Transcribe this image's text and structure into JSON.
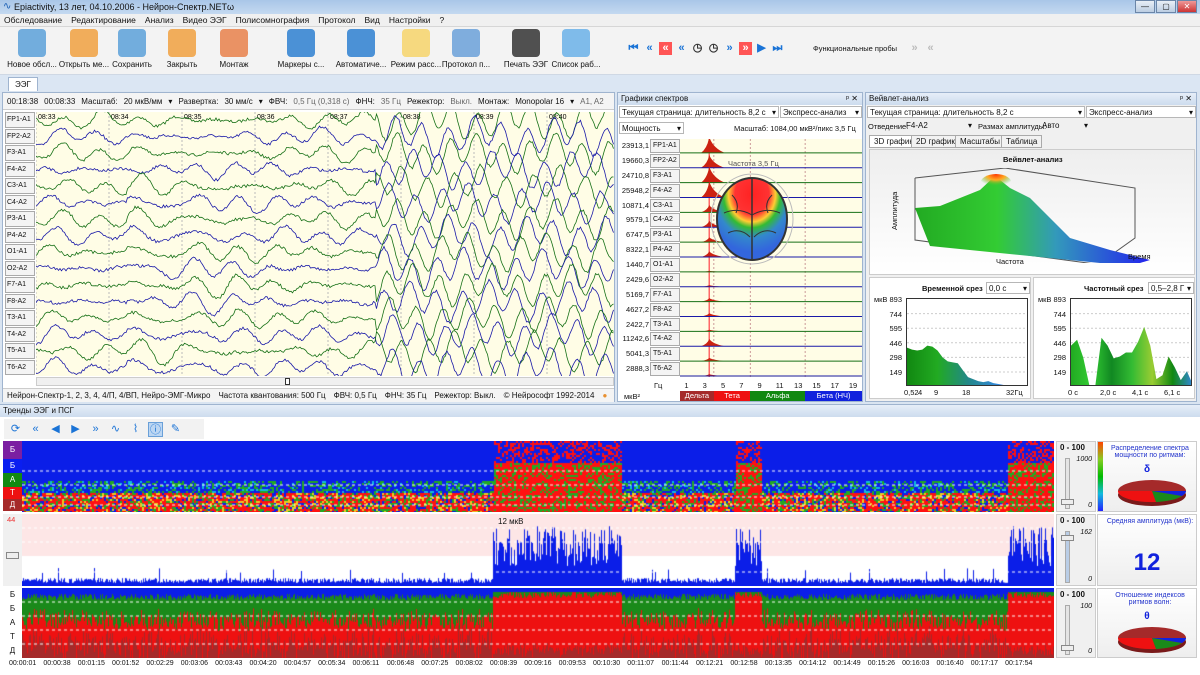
{
  "window": {
    "title": "Epiactivity, 13 лет, 04.10.2006 - Нейрон-Спектр.NETω",
    "minimize": "—",
    "maximize": "▢",
    "close": "✕"
  },
  "menu": [
    "Обследование",
    "Редактирование",
    "Анализ",
    "Видео ЭЭГ",
    "Полисомнография",
    "Протокол",
    "Вид",
    "Настройки",
    "?"
  ],
  "toolbar": {
    "buttons": [
      {
        "label": "Новое обсл...",
        "icon": "new-exam-icon",
        "color": "#5aa0d8"
      },
      {
        "label": "Открыть ме...",
        "icon": "open-icon",
        "color": "#f0a040"
      },
      {
        "label": "Сохранить",
        "icon": "save-icon",
        "color": "#5aa0d8"
      },
      {
        "label": "Закрыть",
        "icon": "close-exam-icon",
        "color": "#f0a040"
      },
      {
        "label": "Монтаж",
        "icon": "montage-head-icon",
        "color": "#e8804a"
      },
      {
        "label": "Маркеры с...",
        "icon": "markers-icon",
        "color": "#2d7fd0"
      },
      {
        "label": "Автоматиче...",
        "icon": "auto-analysis-icon",
        "color": "#2d7fd0"
      },
      {
        "label": "Режим расс...",
        "icon": "view-mode-icon",
        "color": "#f6d36a"
      },
      {
        "label": "Протокол п...",
        "icon": "protocol-icon",
        "color": "#6aa0d8"
      },
      {
        "label": "Печать ЭЭГ",
        "icon": "printer-icon",
        "color": "#333333"
      },
      {
        "label": "Список раб...",
        "icon": "worklist-icon",
        "color": "#6ab0e8"
      }
    ],
    "functional_tests": "Функциональные пробы"
  },
  "tab_eeg": "ЭЭГ",
  "eeg": {
    "time_total": "00:18:38",
    "time_pos": "00:08:33",
    "scale_label": "Масштаб:",
    "scale": "20 мкВ/мм",
    "sweep_label": "Развертка:",
    "sweep": "30 мм/с",
    "hpf_label": "ФВЧ:",
    "hpf": "0,5 Гц (0,318 с)",
    "lpf_label": "ФНЧ:",
    "lpf": "35 Гц",
    "notch_label": "Режектор:",
    "notch": "Выкл.",
    "montage_label": "Монтаж:",
    "montage": "Monopolar 16",
    "ref": "A1, A2",
    "channels": [
      "FP1-A1",
      "FP2-A2",
      "F3-A1",
      "F4-A2",
      "C3-A1",
      "C4-A2",
      "P3-A1",
      "P4-A2",
      "O1-A1",
      "O2-A2",
      "F7-A1",
      "F8-A2",
      "T3-A1",
      "T4-A2",
      "T5-A1",
      "T6-A2"
    ],
    "times": [
      "08:33",
      "08:34",
      "08:35",
      "08:36",
      "08:37",
      "08:38",
      "08:39",
      "08:40",
      "08:4"
    ],
    "status": {
      "device": "Нейрон-Спектр-1, 2, 3, 4, 4/П, 4/ВП, Нейро-ЭМГ-Микро",
      "sampling": "Частота квантования:  500 Гц",
      "hpf": "ФВЧ:  0,5 Гц",
      "lpf": "ФНЧ:  35 Гц",
      "notch": "Режектор:  Выкл.",
      "copyright": "© Нейрософт 1992-2014"
    }
  },
  "spectra": {
    "title": "Графики спектров",
    "page": "Текущая страница: длительность 8,2 с",
    "mode": "Экспресс-анализ",
    "measure": "Мощность",
    "scale": "Масштаб: 1084,00 мкВ²/пикс 3,5 Гц",
    "freq_note": "Частота 3,5 Гц",
    "values": [
      "23913,1",
      "19660,3",
      "24710,8",
      "25948,2",
      "10871,4",
      "9579,1",
      "6747,5",
      "8322,1",
      "1440,7",
      "2429,6",
      "5169,7",
      "4627,2",
      "2422,7",
      "11242,6",
      "5041,3",
      "2888,3"
    ],
    "peaks": [
      1.0,
      0.8,
      1.0,
      1.0,
      0.45,
      0.4,
      0.3,
      0.35,
      0.07,
      0.1,
      0.22,
      0.2,
      0.1,
      0.45,
      0.2,
      0.12
    ],
    "hz_label": "Гц",
    "unit": "мкВ²",
    "ticks": [
      "1",
      "3",
      "5",
      "7",
      "9",
      "11",
      "13",
      "15",
      "17",
      "19"
    ],
    "bands": [
      {
        "name": "Дельта",
        "color": "#a52a2a"
      },
      {
        "name": "Тета",
        "color": "#ee1111"
      },
      {
        "name": "Альфа",
        "color": "#118811"
      },
      {
        "name": "Бета (НЧ)",
        "color": "#1122dd"
      }
    ]
  },
  "wavelet": {
    "title": "Вейвлет-анализ",
    "page": "Текущая страница: длительность 8,2 с",
    "mode": "Экспресс-анализ",
    "lead_label": "Отведение:",
    "lead": "F4-A2",
    "amp_label": "Размах амплитуды:",
    "amp": "Авто",
    "tabs": [
      "3D график",
      "2D график",
      "Масштабы",
      "Таблица"
    ],
    "chart_title": "Вейвлет-анализ",
    "z_label": "Амплитуда",
    "x_label": "Частота",
    "y_label": "Время",
    "time_slice": {
      "title": "Временной срез",
      "value": "0,0 с",
      "y_ticks": [
        "мкВ 893",
        "744",
        "595",
        "446",
        "298",
        "149"
      ],
      "x_ticks": [
        "0,52",
        "4",
        "9",
        "18",
        "32Гц"
      ]
    },
    "freq_slice": {
      "title": "Частотный срез",
      "value": "0,5–2,8 Г",
      "y_ticks": [
        "мкВ 893",
        "744",
        "595",
        "446",
        "298",
        "149"
      ],
      "x_ticks": [
        "0 с",
        "2,0 с",
        "4,1 с",
        "6,1 с"
      ]
    }
  },
  "trends": {
    "title": "Тренды ЭЭГ и ПСГ",
    "band_labels": [
      "Б",
      "Б",
      "А",
      "Т",
      "Д"
    ],
    "amp_max": "44",
    "amp_note": "12 мкВ",
    "range": "0 - 100",
    "slider1": {
      "max": "1000",
      "min": "0"
    },
    "slider2": {
      "max": "162",
      "min": "0"
    },
    "slider3": {
      "max": "100",
      "min": "0"
    },
    "info1": {
      "title": "Распределение спектра мощности по ритмам:",
      "symbol": "δ"
    },
    "info2": {
      "title": "Средняя амплитуда (мкВ):",
      "value": "12"
    },
    "info3": {
      "title": "Отношение индексов ритмов волн:",
      "symbol": "θ"
    },
    "times": [
      "00:00:01",
      "00:00:38",
      "00:01:15",
      "00:01:52",
      "00:02:29",
      "00:03:06",
      "00:03:43",
      "00:04:20",
      "00:04:57",
      "00:05:34",
      "00:06:11",
      "00:06:48",
      "00:07:25",
      "00:08:02",
      "00:08:39",
      "00:09:16",
      "00:09:53",
      "00:10:30",
      "00:11:07",
      "00:11:44",
      "00:12:21",
      "00:12:58",
      "00:13:35",
      "00:14:12",
      "00:14:49",
      "00:15:26",
      "00:16:03",
      "00:16:40",
      "00:17:17",
      "00:17:54"
    ]
  }
}
